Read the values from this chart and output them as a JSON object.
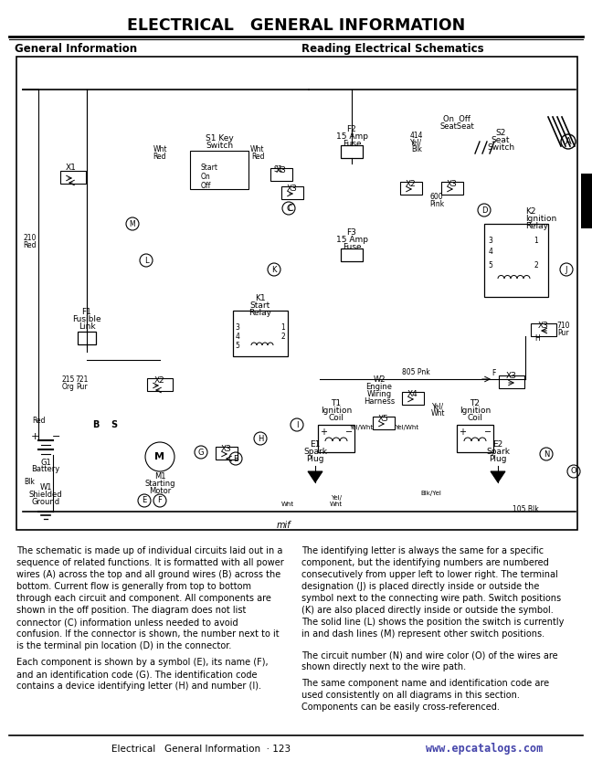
{
  "title": "ELECTRICAL   GENERAL INFORMATION",
  "subtitle_left": "General Information",
  "subtitle_right": "Reading Electrical Schematics",
  "footer_left": "Electrical   General Information  · 123",
  "footer_right": "www.epcatalogs.com",
  "bg_color": "#ffffff",
  "text_color": "#000000",
  "body_text_left_1": "The schematic is made up of individual circuits laid out in a\nsequence of related functions. It is formatted with all power\nwires (A) across the top and all ground wires (B) across the\nbottom. Current flow is generally from top to bottom\nthrough each circuit and component. All components are\nshown in the off position. The diagram does not list\nconnector (C) information unless needed to avoid\nconfusion. If the connector is shown, the number next to it\nis the terminal pin location (D) in the connector.",
  "body_text_left_2": "Each component is shown by a symbol (E), its name (F),\nand an identification code (G). The identification code\ncontains a device identifying letter (H) and number (I).",
  "body_text_right_1": "The identifying letter is always the same for a specific\ncomponent, but the identifying numbers are numbered\nconsecutively from upper left to lower right. The terminal\ndesignation (J) is placed directly inside or outside the\nsymbol next to the connecting wire path. Switch positions\n(K) are also placed directly inside or outside the symbol.\nThe solid line (L) shows the position the switch is currently\nin and dash lines (M) represent other switch positions.",
  "body_text_right_2": "The circuit number (N) and wire color (O) of the wires are\nshown directly next to the wire path.",
  "body_text_right_3": "The same component name and identification code are\nused consistently on all diagrams in this section.\nComponents can be easily cross-referenced."
}
